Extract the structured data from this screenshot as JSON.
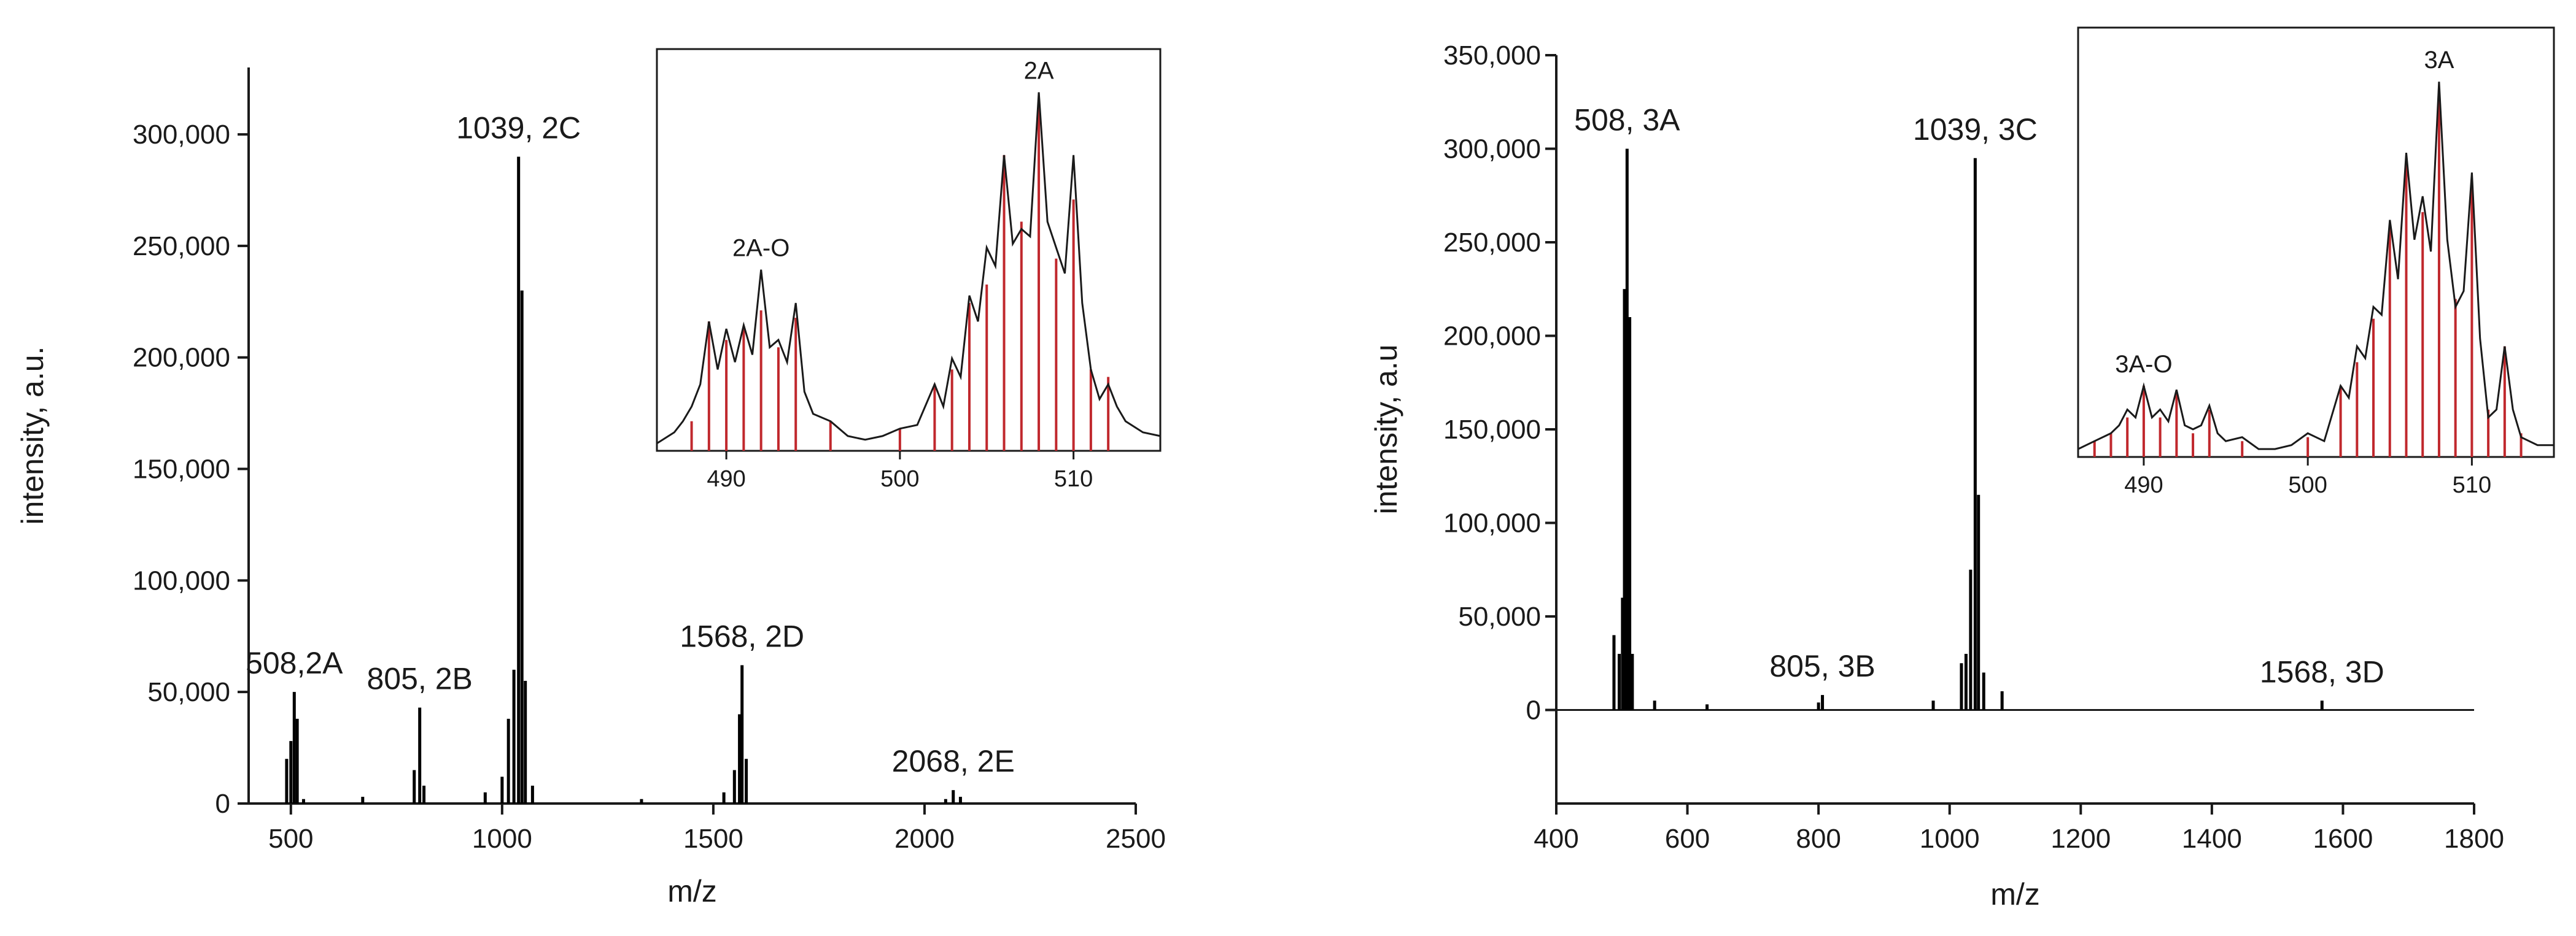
{
  "chart_data": [
    {
      "type": "line",
      "xlabel": "m/z",
      "ylabel": "intensity, a.u.",
      "xlim": [
        400,
        2500
      ],
      "ylim": [
        0,
        330000
      ],
      "xticks": [
        500,
        1000,
        1500,
        2000,
        2500
      ],
      "xtick_labels": [
        "500",
        "1000",
        "1500",
        "2000",
        "2500"
      ],
      "yticks": [
        0,
        50000,
        100000,
        150000,
        200000,
        250000,
        300000
      ],
      "ytick_labels": [
        "0",
        "50,000",
        "100,000",
        "150,000",
        "200,000",
        "250,000",
        "300,000"
      ],
      "peaks": [
        {
          "x": 490,
          "y": 20000
        },
        {
          "x": 500,
          "y": 28000
        },
        {
          "x": 508,
          "y": 50000
        },
        {
          "x": 515,
          "y": 38000
        },
        {
          "x": 530,
          "y": 2000
        },
        {
          "x": 670,
          "y": 3000
        },
        {
          "x": 792,
          "y": 15000
        },
        {
          "x": 805,
          "y": 43000
        },
        {
          "x": 815,
          "y": 8000
        },
        {
          "x": 960,
          "y": 5000
        },
        {
          "x": 1000,
          "y": 12000
        },
        {
          "x": 1015,
          "y": 38000
        },
        {
          "x": 1028,
          "y": 60000
        },
        {
          "x": 1039,
          "y": 290000
        },
        {
          "x": 1047,
          "y": 230000
        },
        {
          "x": 1055,
          "y": 55000
        },
        {
          "x": 1072,
          "y": 8000
        },
        {
          "x": 1330,
          "y": 2000
        },
        {
          "x": 1525,
          "y": 5000
        },
        {
          "x": 1550,
          "y": 15000
        },
        {
          "x": 1562,
          "y": 40000
        },
        {
          "x": 1568,
          "y": 62000
        },
        {
          "x": 1578,
          "y": 20000
        },
        {
          "x": 2050,
          "y": 2000
        },
        {
          "x": 2068,
          "y": 6000
        },
        {
          "x": 2085,
          "y": 3000
        }
      ],
      "annotations": [
        {
          "text": "508,2A",
          "x": 508,
          "y": 50000
        },
        {
          "text": "805, 2B",
          "x": 805,
          "y": 43000
        },
        {
          "text": "1039, 2C",
          "x": 1039,
          "y": 290000
        },
        {
          "text": "1568, 2D",
          "x": 1568,
          "y": 62000
        },
        {
          "text": "2068, 2E",
          "x": 2068,
          "y": 6000
        }
      ],
      "inset": {
        "xlim": [
          486,
          515
        ],
        "xticks": [
          490,
          500,
          510
        ],
        "xtick_labels": [
          "490",
          "500",
          "510"
        ],
        "ylim": [
          0,
          1
        ],
        "bars": [
          {
            "x": 488,
            "y": 0.08
          },
          {
            "x": 489,
            "y": 0.35
          },
          {
            "x": 490,
            "y": 0.3
          },
          {
            "x": 491,
            "y": 0.33
          },
          {
            "x": 492,
            "y": 0.38
          },
          {
            "x": 493,
            "y": 0.28
          },
          {
            "x": 494,
            "y": 0.36
          },
          {
            "x": 496,
            "y": 0.08
          },
          {
            "x": 500,
            "y": 0.06
          },
          {
            "x": 502,
            "y": 0.18
          },
          {
            "x": 503,
            "y": 0.22
          },
          {
            "x": 504,
            "y": 0.4
          },
          {
            "x": 505,
            "y": 0.45
          },
          {
            "x": 506,
            "y": 0.8
          },
          {
            "x": 507,
            "y": 0.62
          },
          {
            "x": 508,
            "y": 0.95
          },
          {
            "x": 509,
            "y": 0.52
          },
          {
            "x": 510,
            "y": 0.68
          },
          {
            "x": 511,
            "y": 0.22
          },
          {
            "x": 512,
            "y": 0.2
          }
        ],
        "profile": [
          [
            486,
            0.02
          ],
          [
            487,
            0.05
          ],
          [
            487.5,
            0.08
          ],
          [
            488,
            0.12
          ],
          [
            488.5,
            0.18
          ],
          [
            489,
            0.35
          ],
          [
            489.5,
            0.22
          ],
          [
            490,
            0.33
          ],
          [
            490.5,
            0.24
          ],
          [
            491,
            0.34
          ],
          [
            491.5,
            0.26
          ],
          [
            492,
            0.49
          ],
          [
            492.5,
            0.28
          ],
          [
            493,
            0.3
          ],
          [
            493.5,
            0.24
          ],
          [
            494,
            0.4
          ],
          [
            494.5,
            0.16
          ],
          [
            495,
            0.1
          ],
          [
            496,
            0.08
          ],
          [
            497,
            0.04
          ],
          [
            498,
            0.03
          ],
          [
            499,
            0.04
          ],
          [
            500,
            0.06
          ],
          [
            501,
            0.07
          ],
          [
            502,
            0.18
          ],
          [
            502.5,
            0.12
          ],
          [
            503,
            0.25
          ],
          [
            503.5,
            0.2
          ],
          [
            504,
            0.42
          ],
          [
            504.5,
            0.35
          ],
          [
            505,
            0.55
          ],
          [
            505.5,
            0.5
          ],
          [
            506,
            0.8
          ],
          [
            506.5,
            0.56
          ],
          [
            507,
            0.6
          ],
          [
            507.5,
            0.58
          ],
          [
            508,
            0.97
          ],
          [
            508.5,
            0.62
          ],
          [
            509,
            0.55
          ],
          [
            509.5,
            0.48
          ],
          [
            510,
            0.8
          ],
          [
            510.5,
            0.4
          ],
          [
            511,
            0.22
          ],
          [
            511.5,
            0.14
          ],
          [
            512,
            0.18
          ],
          [
            512.5,
            0.12
          ],
          [
            513,
            0.08
          ],
          [
            514,
            0.05
          ],
          [
            515,
            0.04
          ]
        ],
        "annotations": [
          {
            "text": "2A-O",
            "x": 492,
            "y": 0.49
          },
          {
            "text": "2A",
            "x": 508,
            "y": 0.97
          }
        ]
      }
    },
    {
      "type": "line",
      "xlabel": "m/z",
      "ylabel": "intensity, a.u",
      "xlim": [
        400,
        1800
      ],
      "ylim": [
        -50000,
        350000
      ],
      "xticks": [
        400,
        600,
        800,
        1000,
        1200,
        1400,
        1600,
        1800
      ],
      "xtick_labels": [
        "400",
        "600",
        "800",
        "1000",
        "1200",
        "1400",
        "1600",
        "1800"
      ],
      "yticks": [
        0,
        50000,
        100000,
        150000,
        200000,
        250000,
        300000,
        350000
      ],
      "ytick_labels": [
        "0",
        "50,000",
        "100,000",
        "150,000",
        "200,000",
        "250,000",
        "300,000",
        "350,000"
      ],
      "peaks": [
        {
          "x": 488,
          "y": 40000
        },
        {
          "x": 496,
          "y": 30000
        },
        {
          "x": 501,
          "y": 60000
        },
        {
          "x": 504,
          "y": 225000
        },
        {
          "x": 508,
          "y": 300000
        },
        {
          "x": 512,
          "y": 210000
        },
        {
          "x": 516,
          "y": 30000
        },
        {
          "x": 550,
          "y": 5000
        },
        {
          "x": 630,
          "y": 3000
        },
        {
          "x": 800,
          "y": 4000
        },
        {
          "x": 806,
          "y": 8000
        },
        {
          "x": 975,
          "y": 5000
        },
        {
          "x": 1018,
          "y": 25000
        },
        {
          "x": 1025,
          "y": 30000
        },
        {
          "x": 1032,
          "y": 75000
        },
        {
          "x": 1039,
          "y": 295000
        },
        {
          "x": 1044,
          "y": 115000
        },
        {
          "x": 1052,
          "y": 20000
        },
        {
          "x": 1080,
          "y": 10000
        },
        {
          "x": 1568,
          "y": 5000
        }
      ],
      "annotations": [
        {
          "text": "508, 3A",
          "x": 508,
          "y": 300000
        },
        {
          "text": "805, 3B",
          "x": 806,
          "y": 8000
        },
        {
          "text": "1039, 3C",
          "x": 1039,
          "y": 295000
        },
        {
          "text": "1568, 3D",
          "x": 1568,
          "y": 5000
        }
      ],
      "inset": {
        "xlim": [
          486,
          515
        ],
        "xticks": [
          490,
          500,
          510
        ],
        "xtick_labels": [
          "490",
          "500",
          "510"
        ],
        "ylim": [
          0,
          1
        ],
        "bars": [
          {
            "x": 487,
            "y": 0.04
          },
          {
            "x": 488,
            "y": 0.06
          },
          {
            "x": 489,
            "y": 0.1
          },
          {
            "x": 490,
            "y": 0.18
          },
          {
            "x": 491,
            "y": 0.1
          },
          {
            "x": 492,
            "y": 0.16
          },
          {
            "x": 493,
            "y": 0.06
          },
          {
            "x": 494,
            "y": 0.12
          },
          {
            "x": 496,
            "y": 0.04
          },
          {
            "x": 500,
            "y": 0.05
          },
          {
            "x": 502,
            "y": 0.18
          },
          {
            "x": 503,
            "y": 0.24
          },
          {
            "x": 504,
            "y": 0.35
          },
          {
            "x": 505,
            "y": 0.58
          },
          {
            "x": 506,
            "y": 0.75
          },
          {
            "x": 507,
            "y": 0.62
          },
          {
            "x": 508,
            "y": 0.93
          },
          {
            "x": 509,
            "y": 0.4
          },
          {
            "x": 510,
            "y": 0.7
          },
          {
            "x": 511,
            "y": 0.12
          },
          {
            "x": 512,
            "y": 0.28
          },
          {
            "x": 513,
            "y": 0.06
          }
        ],
        "profile": [
          [
            486,
            0.02
          ],
          [
            487,
            0.04
          ],
          [
            488,
            0.06
          ],
          [
            488.5,
            0.08
          ],
          [
            489,
            0.12
          ],
          [
            489.5,
            0.1
          ],
          [
            490,
            0.18
          ],
          [
            490.5,
            0.1
          ],
          [
            491,
            0.12
          ],
          [
            491.5,
            0.09
          ],
          [
            492,
            0.17
          ],
          [
            492.5,
            0.08
          ],
          [
            493,
            0.07
          ],
          [
            493.5,
            0.08
          ],
          [
            494,
            0.13
          ],
          [
            494.5,
            0.06
          ],
          [
            495,
            0.04
          ],
          [
            496,
            0.05
          ],
          [
            497,
            0.02
          ],
          [
            498,
            0.02
          ],
          [
            499,
            0.03
          ],
          [
            500,
            0.06
          ],
          [
            501,
            0.04
          ],
          [
            502,
            0.18
          ],
          [
            502.5,
            0.15
          ],
          [
            503,
            0.28
          ],
          [
            503.5,
            0.25
          ],
          [
            504,
            0.38
          ],
          [
            504.5,
            0.36
          ],
          [
            505,
            0.6
          ],
          [
            505.5,
            0.45
          ],
          [
            506,
            0.77
          ],
          [
            506.5,
            0.55
          ],
          [
            507,
            0.66
          ],
          [
            507.5,
            0.52
          ],
          [
            508,
            0.95
          ],
          [
            508.5,
            0.55
          ],
          [
            509,
            0.38
          ],
          [
            509.5,
            0.42
          ],
          [
            510,
            0.72
          ],
          [
            510.5,
            0.3
          ],
          [
            511,
            0.1
          ],
          [
            511.5,
            0.12
          ],
          [
            512,
            0.28
          ],
          [
            512.5,
            0.12
          ],
          [
            513,
            0.05
          ],
          [
            514,
            0.03
          ],
          [
            515,
            0.03
          ]
        ],
        "annotations": [
          {
            "text": "3A-O",
            "x": 490,
            "y": 0.18
          },
          {
            "text": "3A",
            "x": 508,
            "y": 0.95
          }
        ]
      }
    }
  ],
  "colors": {
    "axis": "#1a1a1a",
    "spectrum": "#000000",
    "inset_bars": "#c0282d",
    "inset_profile": "#1a1a1a"
  }
}
